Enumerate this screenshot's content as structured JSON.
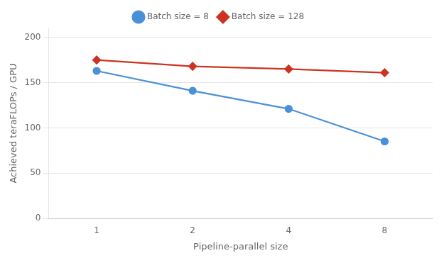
{
  "chart_data": {
    "type": "line",
    "categories": [
      "1",
      "2",
      "4",
      "8"
    ],
    "series": [
      {
        "name": "Batch size = 8",
        "color": "#4a90d9",
        "marker": "circle",
        "values": [
          163,
          141,
          121,
          85
        ]
      },
      {
        "name": "Batch size = 128",
        "color": "#cc3322",
        "marker": "diamond",
        "values": [
          175,
          168,
          165,
          161
        ]
      }
    ],
    "xlabel": "Pipeline-parallel size",
    "ylabel": "Achieved teraFLOPs / GPU",
    "ylim": [
      0,
      210
    ],
    "yticks": [
      0,
      50,
      100,
      150,
      200
    ],
    "grid": "y",
    "legend": "top"
  }
}
